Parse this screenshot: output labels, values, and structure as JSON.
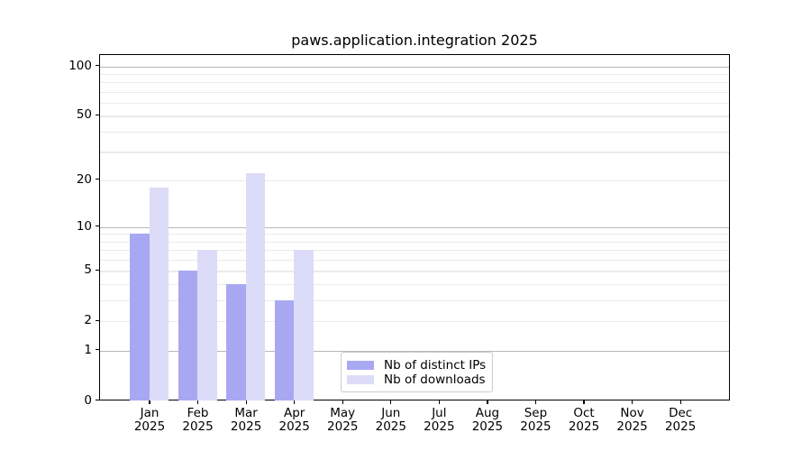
{
  "title": "paws.application.integration 2025",
  "chart_data": {
    "type": "bar",
    "title": "paws.application.integration 2025",
    "categories": [
      "Jan",
      "Feb",
      "Mar",
      "Apr",
      "May",
      "Jun",
      "Jul",
      "Aug",
      "Sep",
      "Oct",
      "Nov",
      "Dec"
    ],
    "year_label": "2025",
    "series": [
      {
        "name": "Nb of distinct IPs",
        "color": "#a8a8f2",
        "values": [
          9,
          5,
          4,
          3,
          0,
          0,
          0,
          0,
          0,
          0,
          0,
          0
        ]
      },
      {
        "name": "Nb of downloads",
        "color": "#dcdcf8",
        "values": [
          18,
          7,
          22,
          7,
          0,
          0,
          0,
          0,
          0,
          0,
          0,
          0
        ]
      }
    ],
    "xlabel": "",
    "ylabel": "",
    "y_scale": "log1p",
    "ylim": [
      0,
      117
    ],
    "y_ticks": [
      0,
      1,
      2,
      5,
      10,
      20,
      50,
      100
    ],
    "y_major_gridlines": [
      1,
      10,
      100
    ],
    "y_minor_gridlines": [
      2,
      3,
      4,
      5,
      6,
      7,
      8,
      9,
      20,
      30,
      40,
      50,
      60,
      70,
      80,
      90
    ],
    "grid": true,
    "legend_position": "lower center",
    "colors": {
      "major_gridline": "#b8b8b8",
      "minor_gridline": "#ebebeb",
      "axis": "#000000",
      "text": "#000000",
      "legend_border": "#cccccc",
      "background": "#ffffff"
    }
  }
}
